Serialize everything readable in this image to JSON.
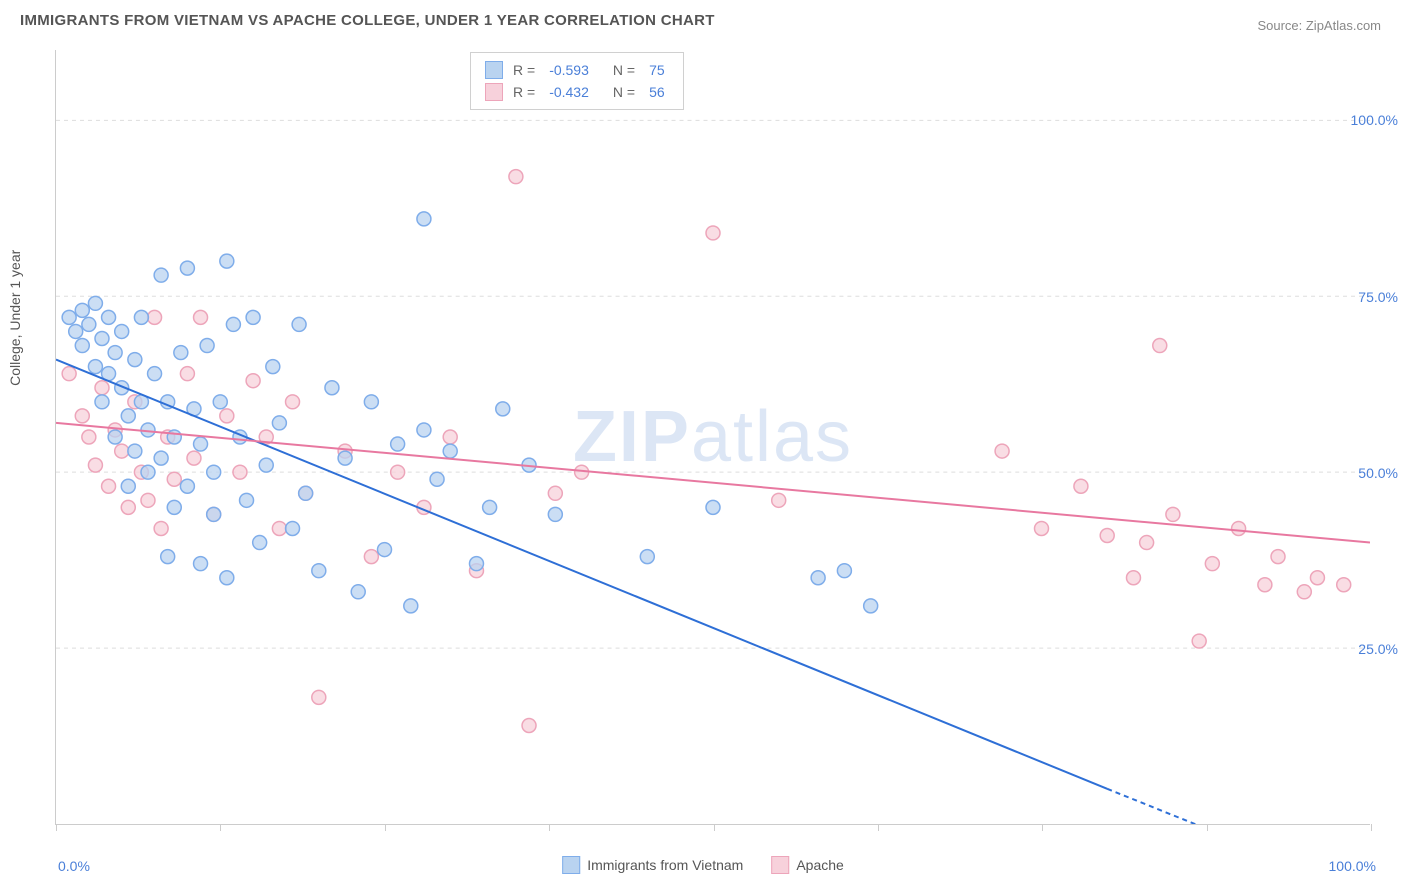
{
  "title": "IMMIGRANTS FROM VIETNAM VS APACHE COLLEGE, UNDER 1 YEAR CORRELATION CHART",
  "source": "Source: ZipAtlas.com",
  "watermark_bold": "ZIP",
  "watermark_rest": "atlas",
  "yaxis_title": "College, Under 1 year",
  "xaxis_min_label": "0.0%",
  "xaxis_max_label": "100.0%",
  "chart": {
    "type": "scatter",
    "xlim": [
      0,
      100
    ],
    "ylim": [
      0,
      110
    ],
    "y_ticks": [
      25,
      50,
      75,
      100
    ],
    "y_tick_labels": [
      "25.0%",
      "50.0%",
      "75.0%",
      "100.0%"
    ],
    "x_tick_positions": [
      0,
      12.5,
      25,
      37.5,
      50,
      62.5,
      75,
      87.5,
      100
    ],
    "grid_color": "#dddddd",
    "background_color": "#ffffff",
    "marker_radius": 7,
    "marker_stroke_width": 1.5,
    "line_width": 2
  },
  "series_a": {
    "label": "Immigrants from Vietnam",
    "fill_color": "#b9d3f0",
    "stroke_color": "#7fadea",
    "line_color": "#2e6fd6",
    "r_value": "-0.593",
    "n_value": "75",
    "regression": {
      "x1": 0,
      "y1": 66,
      "x2": 80,
      "y2": 5,
      "x2_dash": 100,
      "y2_dash": -10
    },
    "points": [
      [
        1,
        72
      ],
      [
        1.5,
        70
      ],
      [
        2,
        68
      ],
      [
        2,
        73
      ],
      [
        2.5,
        71
      ],
      [
        3,
        65
      ],
      [
        3,
        74
      ],
      [
        3.5,
        60
      ],
      [
        3.5,
        69
      ],
      [
        4,
        72
      ],
      [
        4,
        64
      ],
      [
        4.5,
        55
      ],
      [
        4.5,
        67
      ],
      [
        5,
        70
      ],
      [
        5,
        62
      ],
      [
        5.5,
        48
      ],
      [
        5.5,
        58
      ],
      [
        6,
        66
      ],
      [
        6,
        53
      ],
      [
        6.5,
        72
      ],
      [
        6.5,
        60
      ],
      [
        7,
        56
      ],
      [
        7,
        50
      ],
      [
        7.5,
        64
      ],
      [
        8,
        78
      ],
      [
        8,
        52
      ],
      [
        8.5,
        60
      ],
      [
        8.5,
        38
      ],
      [
        9,
        55
      ],
      [
        9,
        45
      ],
      [
        9.5,
        67
      ],
      [
        10,
        79
      ],
      [
        10,
        48
      ],
      [
        10.5,
        59
      ],
      [
        11,
        37
      ],
      [
        11,
        54
      ],
      [
        11.5,
        68
      ],
      [
        12,
        50
      ],
      [
        12,
        44
      ],
      [
        12.5,
        60
      ],
      [
        13,
        80
      ],
      [
        13,
        35
      ],
      [
        13.5,
        71
      ],
      [
        14,
        55
      ],
      [
        14.5,
        46
      ],
      [
        15,
        72
      ],
      [
        15.5,
        40
      ],
      [
        16,
        51
      ],
      [
        16.5,
        65
      ],
      [
        17,
        57
      ],
      [
        18,
        42
      ],
      [
        18.5,
        71
      ],
      [
        19,
        47
      ],
      [
        20,
        36
      ],
      [
        21,
        62
      ],
      [
        22,
        52
      ],
      [
        23,
        33
      ],
      [
        24,
        60
      ],
      [
        25,
        39
      ],
      [
        26,
        54
      ],
      [
        27,
        31
      ],
      [
        28,
        56
      ],
      [
        28,
        86
      ],
      [
        29,
        49
      ],
      [
        30,
        53
      ],
      [
        32,
        37
      ],
      [
        33,
        45
      ],
      [
        34,
        59
      ],
      [
        36,
        51
      ],
      [
        38,
        44
      ],
      [
        45,
        38
      ],
      [
        50,
        45
      ],
      [
        58,
        35
      ],
      [
        60,
        36
      ],
      [
        62,
        31
      ]
    ]
  },
  "series_b": {
    "label": "Apache",
    "fill_color": "#f7d1db",
    "stroke_color": "#eda5ba",
    "line_color": "#e878a0",
    "r_value": "-0.432",
    "n_value": "56",
    "regression": {
      "x1": 0,
      "y1": 57,
      "x2": 100,
      "y2": 40
    },
    "points": [
      [
        1,
        64
      ],
      [
        2,
        58
      ],
      [
        2.5,
        55
      ],
      [
        3,
        51
      ],
      [
        3.5,
        62
      ],
      [
        4,
        48
      ],
      [
        4.5,
        56
      ],
      [
        5,
        53
      ],
      [
        5.5,
        45
      ],
      [
        6,
        60
      ],
      [
        6.5,
        50
      ],
      [
        7,
        46
      ],
      [
        7.5,
        72
      ],
      [
        8,
        42
      ],
      [
        8.5,
        55
      ],
      [
        9,
        49
      ],
      [
        10,
        64
      ],
      [
        10.5,
        52
      ],
      [
        11,
        72
      ],
      [
        12,
        44
      ],
      [
        13,
        58
      ],
      [
        14,
        50
      ],
      [
        15,
        63
      ],
      [
        16,
        55
      ],
      [
        17,
        42
      ],
      [
        18,
        60
      ],
      [
        19,
        47
      ],
      [
        20,
        18
      ],
      [
        22,
        53
      ],
      [
        24,
        38
      ],
      [
        26,
        50
      ],
      [
        28,
        45
      ],
      [
        30,
        55
      ],
      [
        32,
        36
      ],
      [
        35,
        92
      ],
      [
        36,
        14
      ],
      [
        38,
        47
      ],
      [
        40,
        50
      ],
      [
        50,
        84
      ],
      [
        55,
        46
      ],
      [
        72,
        53
      ],
      [
        75,
        42
      ],
      [
        78,
        48
      ],
      [
        80,
        41
      ],
      [
        82,
        35
      ],
      [
        83,
        40
      ],
      [
        84,
        68
      ],
      [
        85,
        44
      ],
      [
        87,
        26
      ],
      [
        88,
        37
      ],
      [
        90,
        42
      ],
      [
        92,
        34
      ],
      [
        93,
        38
      ],
      [
        95,
        33
      ],
      [
        96,
        35
      ],
      [
        98,
        34
      ]
    ]
  },
  "legend_top": {
    "r_label": "R =",
    "n_label": "N ="
  }
}
